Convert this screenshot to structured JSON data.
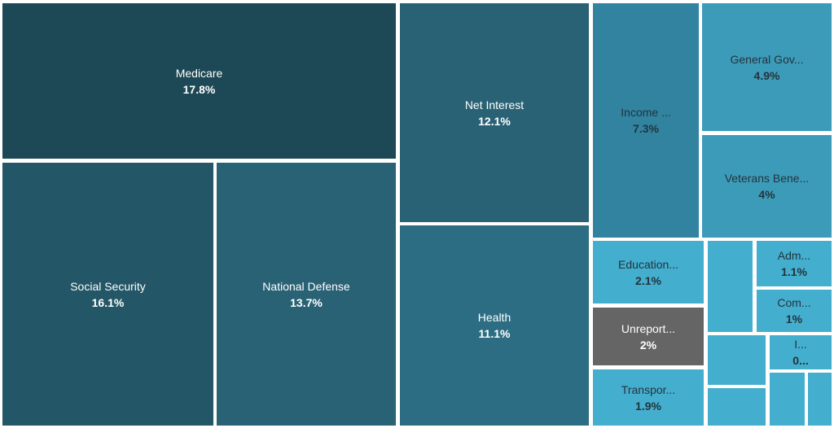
{
  "chart_data": {
    "type": "treemap",
    "colors": {
      "darkest": "#1d4855",
      "dark": "#235666",
      "mid_dark": "#2a6275",
      "mid": "#2c6d83",
      "mid_light": "#3183a0",
      "light": "#3c9bb9",
      "lighter": "#44aece",
      "unreported": "#656565"
    },
    "cells": [
      {
        "label": "Medicare",
        "value_text": "17.8%",
        "value": 17.8,
        "color": "darkest",
        "text": "light"
      },
      {
        "label": "Social Security",
        "value_text": "16.1%",
        "value": 16.1,
        "color": "dark",
        "text": "light"
      },
      {
        "label": "National Defense",
        "value_text": "13.7%",
        "value": 13.7,
        "color": "mid_dark",
        "text": "light"
      },
      {
        "label": "Net Interest",
        "value_text": "12.1%",
        "value": 12.1,
        "color": "mid_dark",
        "text": "light"
      },
      {
        "label": "Health",
        "value_text": "11.1%",
        "value": 11.1,
        "color": "mid",
        "text": "light"
      },
      {
        "label": "Income ...",
        "value_text": "7.3%",
        "value": 7.3,
        "color": "mid_light",
        "text": "dark"
      },
      {
        "label": "General Gov...",
        "value_text": "4.9%",
        "value": 4.9,
        "color": "light",
        "text": "dark"
      },
      {
        "label": "Veterans Bene...",
        "value_text": "4%",
        "value": 4,
        "color": "light",
        "text": "dark"
      },
      {
        "label": "Education...",
        "value_text": "2.1%",
        "value": 2.1,
        "color": "lighter",
        "text": "dark"
      },
      {
        "label": "Unreport...",
        "value_text": "2%",
        "value": 2,
        "color": "unreported",
        "text": "light"
      },
      {
        "label": "Transpor...",
        "value_text": "1.9%",
        "value": 1.9,
        "color": "lighter",
        "text": "dark"
      },
      {
        "label": "",
        "value_text": "",
        "color": "lighter",
        "text": "dark"
      },
      {
        "label": "Adm...",
        "value_text": "1.1%",
        "value": 1.1,
        "color": "lighter",
        "text": "dark"
      },
      {
        "label": "Com...",
        "value_text": "1%",
        "value": 1,
        "color": "lighter",
        "text": "dark"
      },
      {
        "label": "",
        "value_text": "",
        "color": "lighter",
        "text": "dark"
      },
      {
        "label": "I...",
        "value_text": "0...",
        "color": "lighter",
        "text": "dark"
      },
      {
        "label": "",
        "value_text": "",
        "color": "lighter",
        "text": "dark"
      },
      {
        "label": "",
        "value_text": "",
        "color": "lighter",
        "text": "dark"
      },
      {
        "label": "",
        "value_text": "",
        "color": "lighter",
        "text": "dark"
      }
    ]
  }
}
